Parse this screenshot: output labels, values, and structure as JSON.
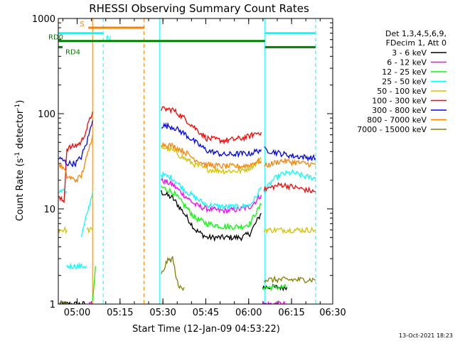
{
  "chart_data": {
    "type": "line",
    "title": "RHESSI Observing Summary Count Rates",
    "xlabel": "Start Time (12-Jan-09 04:53:22)",
    "ylabel": "Count Rate (s⁻¹ detector⁻¹)",
    "ylabel_main": "Count Rate (s",
    "ylabel_sup1": "-1",
    "ylabel_mid": " detector",
    "ylabel_sup2": "-1",
    "ylabel_end": ")",
    "x_unit": "minutes since 04:53:22",
    "y_scale": "log",
    "ylim": [
      1,
      1000
    ],
    "xlim_min_since_start": [
      0,
      96
    ],
    "x_ticks": [
      {
        "label": "05:00",
        "t": 6.6
      },
      {
        "label": "05:15",
        "t": 21.6
      },
      {
        "label": "05:30",
        "t": 36.6
      },
      {
        "label": "05:45",
        "t": 51.6
      },
      {
        "label": "06:00",
        "t": 66.6
      },
      {
        "label": "06:15",
        "t": 81.6
      },
      {
        "label": "06:30",
        "t": 96.6
      }
    ],
    "y_ticks": [
      {
        "label": "1",
        "v": 1
      },
      {
        "label": "10",
        "v": 10
      },
      {
        "label": "100",
        "v": 100
      },
      {
        "label": "1000",
        "v": 1000
      }
    ],
    "legend_header": [
      "Det 1,3,4,5,6,9,",
      "FDecim 1, Att 0"
    ],
    "series": [
      {
        "name": "3 - 6 keV",
        "color": "#000000",
        "segments": [
          [
            [
              0,
              1
            ],
            [
              10,
              1
            ]
          ],
          [
            [
              36,
              15
            ],
            [
              40,
              13
            ],
            [
              44,
              9
            ],
            [
              48,
              6
            ],
            [
              52,
              5
            ],
            [
              58,
              5
            ],
            [
              64,
              5
            ],
            [
              67,
              5.5
            ],
            [
              69,
              7
            ],
            [
              71,
              9
            ]
          ],
          [
            [
              71.5,
              1.5
            ],
            [
              80,
              1.5
            ]
          ]
        ]
      },
      {
        "name": "6 - 12 keV",
        "color": "#ff00ff",
        "segments": [
          [
            [
              10,
              1
            ],
            [
              12.5,
              1
            ]
          ],
          [
            [
              36,
              20
            ],
            [
              40,
              18
            ],
            [
              44,
              14
            ],
            [
              48,
              11
            ],
            [
              52,
              10
            ],
            [
              58,
              9.5
            ],
            [
              64,
              10
            ],
            [
              67,
              10.5
            ],
            [
              69,
              12
            ],
            [
              71,
              14
            ]
          ],
          [
            [
              71.5,
              1
            ],
            [
              80,
              1
            ]
          ]
        ]
      },
      {
        "name": "12 - 25 keV",
        "color": "#00ff00",
        "segments": [
          [
            [
              12,
              1
            ],
            [
              13,
              2.5
            ]
          ],
          [
            [
              36,
              17
            ],
            [
              40,
              15
            ],
            [
              44,
              11
            ],
            [
              48,
              8
            ],
            [
              52,
              7
            ],
            [
              58,
              6.5
            ],
            [
              64,
              6.5
            ],
            [
              67,
              7
            ],
            [
              69,
              9
            ],
            [
              71,
              11
            ]
          ],
          [
            [
              71.5,
              1.5
            ],
            [
              80,
              1.5
            ]
          ]
        ]
      },
      {
        "name": "25 - 50 keV",
        "color": "#00ffff",
        "segments": [
          [
            [
              0,
              15
            ],
            [
              3,
              15
            ]
          ],
          [
            [
              3,
              2.5
            ],
            [
              10,
              2.5
            ]
          ],
          [
            [
              8,
              5
            ],
            [
              12,
              15
            ]
          ],
          [
            [
              36,
              23
            ],
            [
              40,
              21
            ],
            [
              44,
              16
            ],
            [
              48,
              13
            ],
            [
              52,
              11
            ],
            [
              58,
              10.5
            ],
            [
              64,
              10.5
            ],
            [
              67,
              11
            ],
            [
              69,
              13
            ],
            [
              71,
              17
            ]
          ],
          [
            [
              72,
              15
            ],
            [
              75,
              20
            ],
            [
              78,
              23
            ],
            [
              82,
              24
            ],
            [
              86,
              22
            ],
            [
              90,
              21
            ]
          ]
        ]
      },
      {
        "name": "50 - 100 keV",
        "color": "#d4c000",
        "segments": [
          [
            [
              0,
              6
            ],
            [
              3,
              6
            ]
          ],
          [
            [
              10,
              6
            ],
            [
              12,
              6
            ]
          ],
          [
            [
              36,
              45
            ],
            [
              40,
              41
            ],
            [
              44,
              34
            ],
            [
              48,
              29
            ],
            [
              52,
              26
            ],
            [
              58,
              25
            ],
            [
              64,
              25
            ],
            [
              67,
              27
            ],
            [
              69,
              30
            ],
            [
              71,
              33
            ]
          ],
          [
            [
              72,
              6
            ],
            [
              90,
              6
            ]
          ]
        ]
      },
      {
        "name": "100 - 300 keV",
        "color": "#ff0000",
        "segments": [
          [
            [
              0,
              13
            ],
            [
              2,
              12
            ],
            [
              3,
              43
            ],
            [
              6,
              46
            ],
            [
              8,
              50
            ],
            [
              10,
              70
            ],
            [
              12,
              105
            ]
          ],
          [
            [
              36,
              112
            ],
            [
              40,
              110
            ],
            [
              44,
              90
            ],
            [
              48,
              70
            ],
            [
              52,
              55
            ],
            [
              58,
              52
            ],
            [
              64,
              55
            ],
            [
              67,
              58
            ],
            [
              69,
              62
            ],
            [
              71,
              64
            ]
          ],
          [
            [
              72,
              16
            ],
            [
              75,
              17
            ],
            [
              78,
              18
            ],
            [
              82,
              17
            ],
            [
              86,
              16
            ],
            [
              90,
              15
            ]
          ]
        ]
      },
      {
        "name": "300 - 800 keV",
        "color": "#0000ff",
        "segments": [
          [
            [
              0,
              34
            ],
            [
              2,
              32
            ],
            [
              3,
              30
            ],
            [
              6,
              30
            ],
            [
              8,
              35
            ],
            [
              10,
              50
            ],
            [
              12,
              85
            ]
          ],
          [
            [
              36,
              75
            ],
            [
              40,
              73
            ],
            [
              44,
              62
            ],
            [
              48,
              50
            ],
            [
              52,
              41
            ],
            [
              58,
              37
            ],
            [
              64,
              38
            ],
            [
              67,
              38
            ],
            [
              69,
              40
            ],
            [
              71,
              42
            ]
          ],
          [
            [
              72,
              42
            ],
            [
              75,
              40
            ],
            [
              78,
              38
            ],
            [
              82,
              36
            ],
            [
              86,
              35
            ],
            [
              90,
              34
            ]
          ]
        ]
      },
      {
        "name": "800 - 7000 keV",
        "color": "#ff8000",
        "segments": [
          [
            [
              0,
              30
            ],
            [
              2,
              26
            ],
            [
              3,
              22
            ],
            [
              6,
              20
            ],
            [
              8,
              22
            ],
            [
              10,
              35
            ],
            [
              12,
              60
            ]
          ],
          [
            [
              36,
              48
            ],
            [
              40,
              46
            ],
            [
              44,
              40
            ],
            [
              48,
              33
            ],
            [
              52,
              29
            ],
            [
              58,
              28
            ],
            [
              64,
              28
            ],
            [
              67,
              29
            ],
            [
              69,
              31
            ],
            [
              71,
              32
            ]
          ],
          [
            [
              72,
              28
            ],
            [
              75,
              30
            ],
            [
              78,
              32
            ],
            [
              82,
              31
            ],
            [
              86,
              30
            ],
            [
              90,
              29
            ]
          ]
        ]
      },
      {
        "name": "7000 - 15000 keV",
        "color": "#808000",
        "segments": [
          [
            [
              0,
              1
            ],
            [
              3,
              1
            ]
          ],
          [
            [
              36,
              2
            ],
            [
              38,
              2.8
            ],
            [
              40,
              3
            ],
            [
              42,
              1.5
            ],
            [
              44,
              1.5
            ]
          ],
          [
            [
              72,
              1.8
            ],
            [
              90,
              1.8
            ]
          ]
        ]
      }
    ],
    "flags": [
      {
        "label": "S",
        "color": "#ff8000",
        "y": 800,
        "x": [
          10.5,
          30
        ]
      },
      {
        "label": "N",
        "color": "#00ffff",
        "y": 700,
        "segments": [
          [
            0,
            15.7
          ],
          [
            72.3,
            90
          ]
        ]
      },
      {
        "label": "RD0",
        "color": "#008000",
        "y": 580,
        "segments": [
          [
            0,
            72.3
          ]
        ]
      },
      {
        "label": "RD4",
        "color": "#008000",
        "y": 500,
        "segments": [
          [
            0,
            1.5
          ],
          [
            72.3,
            90
          ]
        ]
      }
    ],
    "vlines": [
      {
        "t": 12.0,
        "color": "#ff8000",
        "dashed": false
      },
      {
        "t": 15.7,
        "color": "#00ffff",
        "dashed": true
      },
      {
        "t": 30.0,
        "color": "#ff8000",
        "dashed": true
      },
      {
        "t": 35.5,
        "color": "#00ffff",
        "dashed": false
      },
      {
        "t": 72.3,
        "color": "#00ffff",
        "dashed": false
      },
      {
        "t": 90.0,
        "color": "#00ffff",
        "dashed": true
      }
    ]
  },
  "footer_timestamp": "13-Oct-2021 18:23"
}
